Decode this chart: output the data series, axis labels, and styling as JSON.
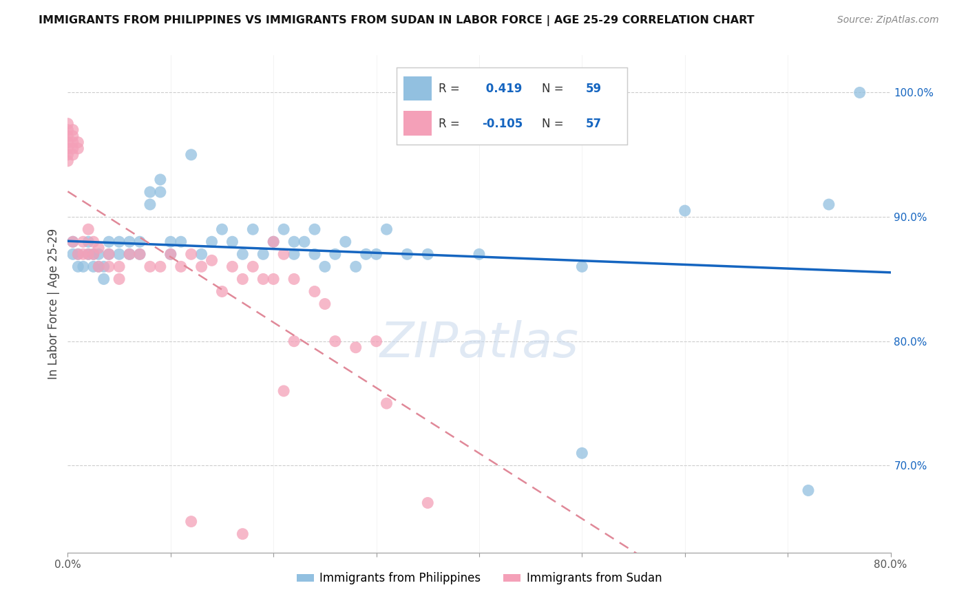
{
  "title": "IMMIGRANTS FROM PHILIPPINES VS IMMIGRANTS FROM SUDAN IN LABOR FORCE | AGE 25-29 CORRELATION CHART",
  "source": "Source: ZipAtlas.com",
  "ylabel": "In Labor Force | Age 25-29",
  "xlim": [
    0.0,
    0.8
  ],
  "ylim": [
    0.63,
    1.03
  ],
  "xticks": [
    0.0,
    0.1,
    0.2,
    0.3,
    0.4,
    0.5,
    0.6,
    0.7,
    0.8
  ],
  "xticklabels": [
    "0.0%",
    "",
    "",
    "",
    "",
    "",
    "",
    "",
    "80.0%"
  ],
  "yticks_right": [
    0.7,
    0.8,
    0.9,
    1.0
  ],
  "yticklabels_right": [
    "70.0%",
    "80.0%",
    "90.0%",
    "100.0%"
  ],
  "r_blue": 0.419,
  "n_blue": 59,
  "r_pink": -0.105,
  "n_pink": 57,
  "legend_labels": [
    "Immigrants from Philippines",
    "Immigrants from Sudan"
  ],
  "blue_color": "#92C0E0",
  "pink_color": "#F4A0B8",
  "blue_line_color": "#1565C0",
  "pink_line_color": "#E08898",
  "blue_points_x": [
    0.005,
    0.005,
    0.01,
    0.01,
    0.015,
    0.02,
    0.02,
    0.025,
    0.025,
    0.03,
    0.03,
    0.035,
    0.035,
    0.04,
    0.04,
    0.05,
    0.05,
    0.06,
    0.06,
    0.07,
    0.07,
    0.08,
    0.08,
    0.09,
    0.09,
    0.1,
    0.1,
    0.11,
    0.12,
    0.13,
    0.14,
    0.15,
    0.16,
    0.17,
    0.18,
    0.19,
    0.2,
    0.21,
    0.22,
    0.23,
    0.24,
    0.25,
    0.26,
    0.27,
    0.28,
    0.29,
    0.3,
    0.22,
    0.24,
    0.31,
    0.33,
    0.35,
    0.4,
    0.5,
    0.5,
    0.6,
    0.72,
    0.74,
    0.77
  ],
  "blue_points_y": [
    0.87,
    0.88,
    0.87,
    0.86,
    0.86,
    0.88,
    0.87,
    0.86,
    0.87,
    0.87,
    0.86,
    0.86,
    0.85,
    0.88,
    0.87,
    0.88,
    0.87,
    0.87,
    0.88,
    0.88,
    0.87,
    0.91,
    0.92,
    0.93,
    0.92,
    0.88,
    0.87,
    0.88,
    0.95,
    0.87,
    0.88,
    0.89,
    0.88,
    0.87,
    0.89,
    0.87,
    0.88,
    0.89,
    0.88,
    0.88,
    0.87,
    0.86,
    0.87,
    0.88,
    0.86,
    0.87,
    0.87,
    0.87,
    0.89,
    0.89,
    0.87,
    0.87,
    0.87,
    0.71,
    0.86,
    0.905,
    0.68,
    0.91,
    1.0
  ],
  "pink_points_x": [
    0.0,
    0.0,
    0.0,
    0.0,
    0.0,
    0.0,
    0.0,
    0.005,
    0.005,
    0.005,
    0.005,
    0.005,
    0.005,
    0.01,
    0.01,
    0.01,
    0.015,
    0.015,
    0.02,
    0.02,
    0.025,
    0.025,
    0.03,
    0.03,
    0.04,
    0.04,
    0.05,
    0.05,
    0.06,
    0.07,
    0.08,
    0.09,
    0.1,
    0.11,
    0.12,
    0.13,
    0.14,
    0.15,
    0.16,
    0.17,
    0.18,
    0.19,
    0.2,
    0.21,
    0.22,
    0.2,
    0.21,
    0.22,
    0.24,
    0.25,
    0.26,
    0.28,
    0.3,
    0.31,
    0.35,
    0.12,
    0.17
  ],
  "pink_points_y": [
    0.975,
    0.97,
    0.965,
    0.96,
    0.955,
    0.95,
    0.945,
    0.97,
    0.965,
    0.96,
    0.955,
    0.95,
    0.88,
    0.96,
    0.955,
    0.87,
    0.87,
    0.88,
    0.89,
    0.87,
    0.88,
    0.87,
    0.875,
    0.86,
    0.87,
    0.86,
    0.86,
    0.85,
    0.87,
    0.87,
    0.86,
    0.86,
    0.87,
    0.86,
    0.87,
    0.86,
    0.865,
    0.84,
    0.86,
    0.85,
    0.86,
    0.85,
    0.85,
    0.76,
    0.8,
    0.88,
    0.87,
    0.85,
    0.84,
    0.83,
    0.8,
    0.795,
    0.8,
    0.75,
    0.67,
    0.655,
    0.645
  ]
}
